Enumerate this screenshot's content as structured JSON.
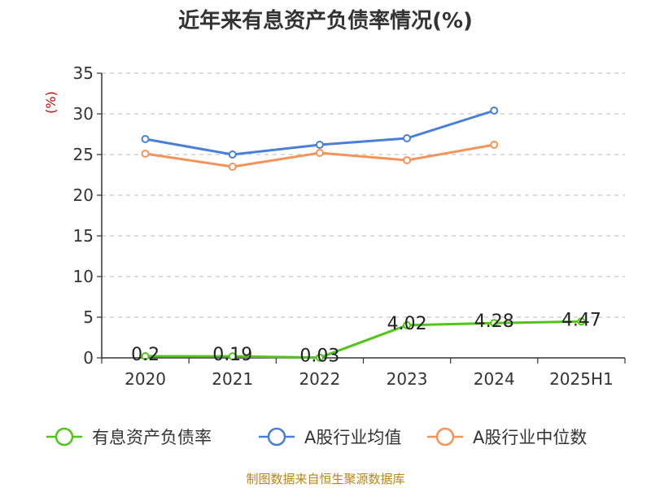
{
  "chart_data": {
    "type": "line",
    "title": "近年来有息资产负债率情况(%)",
    "ylabel": "(%)",
    "xlabel": "",
    "categories": [
      "2020",
      "2021",
      "2022",
      "2023",
      "2024",
      "2025H1"
    ],
    "ylim": [
      0,
      35
    ],
    "yticks": [
      0,
      5,
      10,
      15,
      20,
      25,
      30,
      35
    ],
    "grid": true,
    "legend_position": "bottom",
    "series": [
      {
        "name": "有息资产负债率",
        "color": "#52c41a",
        "values": [
          0.2,
          0.19,
          0.03,
          4.02,
          4.28,
          4.47
        ],
        "labels": [
          "0.2",
          "0.19",
          "0.03",
          "4.02",
          "4.28",
          "4.47"
        ]
      },
      {
        "name": "A股行业均值",
        "color": "#4a7fd8",
        "values": [
          26.9,
          25.0,
          26.2,
          27.0,
          30.4,
          null
        ]
      },
      {
        "name": "A股行业中位数",
        "color": "#f4935a",
        "values": [
          25.1,
          23.5,
          25.2,
          24.3,
          26.2,
          null
        ]
      }
    ]
  },
  "source": "制图数据来自恒生聚源数据库"
}
